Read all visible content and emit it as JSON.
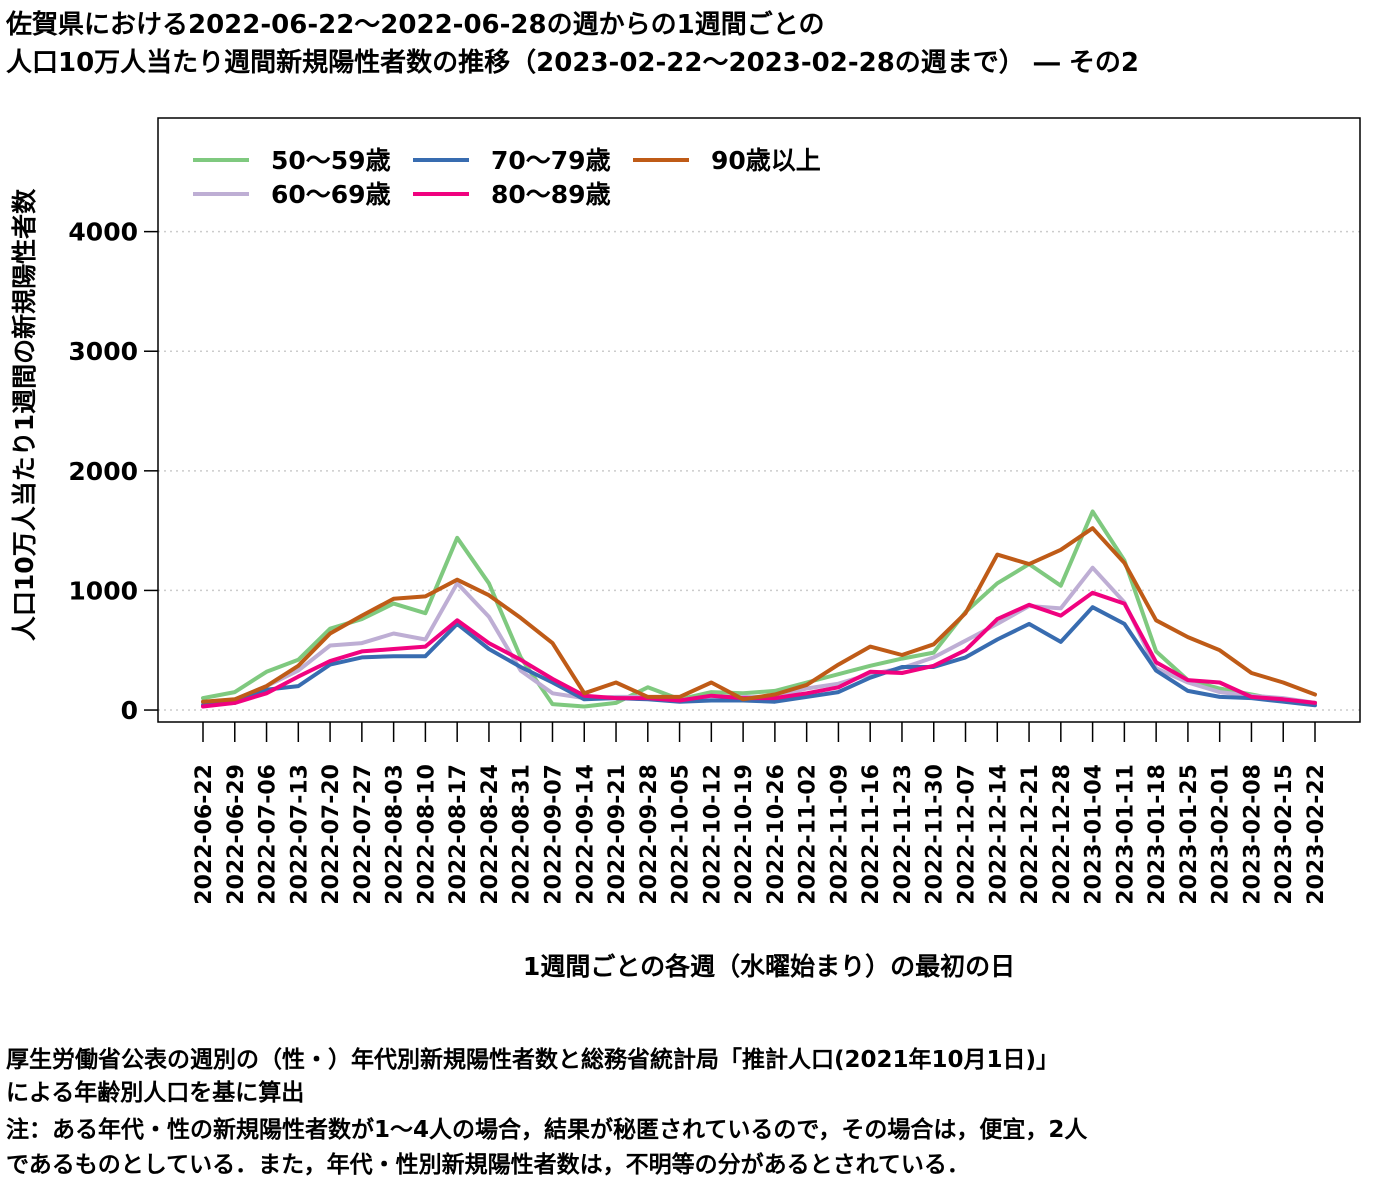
{
  "title": {
    "line1": "佐賀県における2022-06-22〜2022-06-28の週からの1週間ごとの",
    "line2": "人口10万人当たり週間新規陽性者数の推移（2023-02-22〜2023-02-28の週まで） ― その2"
  },
  "notes": {
    "line1": "厚生労働省公表の週別の（性・）年代別新規陽性者数と総務省統計局「推計人口(2021年10月1日)」",
    "line2": "による年齢別人口を基に算出",
    "line3": "注：ある年代・性の新規陽性者数が1〜4人の場合，結果が秘匿されているので，その場合は，便宜，2人",
    "line4": "であるものとしている．また，年代・性別新規陽性者数は，不明等の分があるとされている．"
  },
  "chart_data": {
    "type": "line",
    "xlabel": "1週間ごとの各週（水曜始まり）の最初の日",
    "ylabel": "人口10万人当たり1週間の新規陽性者数",
    "ylim": [
      -100,
      4950
    ],
    "yticks": [
      0,
      1000,
      2000,
      3000,
      4000
    ],
    "grid": "horizontal dotted",
    "legend_position": "top-left",
    "categories": [
      "2022-06-22",
      "2022-06-29",
      "2022-07-06",
      "2022-07-13",
      "2022-07-20",
      "2022-07-27",
      "2022-08-03",
      "2022-08-10",
      "2022-08-17",
      "2022-08-24",
      "2022-08-31",
      "2022-09-07",
      "2022-09-14",
      "2022-09-21",
      "2022-09-28",
      "2022-10-05",
      "2022-10-12",
      "2022-10-19",
      "2022-10-26",
      "2022-11-02",
      "2022-11-09",
      "2022-11-16",
      "2022-11-23",
      "2022-11-30",
      "2022-12-07",
      "2022-12-14",
      "2022-12-21",
      "2022-12-28",
      "2023-01-04",
      "2023-01-11",
      "2023-01-18",
      "2023-01-25",
      "2023-02-01",
      "2023-02-08",
      "2023-02-15",
      "2023-02-22"
    ],
    "series": [
      {
        "name": "50〜59歳",
        "color": "#7fc97f",
        "values": [
          100,
          150,
          320,
          420,
          680,
          760,
          890,
          810,
          1440,
          1060,
          440,
          50,
          30,
          60,
          190,
          90,
          150,
          140,
          160,
          230,
          300,
          370,
          430,
          480,
          820,
          1060,
          1220,
          1040,
          1660,
          1250,
          490,
          250,
          180,
          130,
          80,
          60
        ]
      },
      {
        "name": "60〜69歳",
        "color": "#beaed4",
        "values": [
          60,
          90,
          200,
          330,
          540,
          560,
          640,
          590,
          1060,
          780,
          330,
          140,
          100,
          110,
          110,
          80,
          110,
          110,
          110,
          180,
          220,
          300,
          350,
          440,
          580,
          720,
          870,
          850,
          1190,
          900,
          350,
          230,
          150,
          120,
          100,
          60
        ]
      },
      {
        "name": "70〜79歳",
        "color": "#386cb0",
        "values": [
          40,
          60,
          170,
          200,
          380,
          440,
          450,
          450,
          720,
          510,
          360,
          230,
          90,
          100,
          90,
          70,
          80,
          80,
          70,
          110,
          150,
          270,
          360,
          360,
          440,
          590,
          720,
          570,
          860,
          720,
          330,
          160,
          110,
          100,
          70,
          40
        ]
      },
      {
        "name": "80〜89歳",
        "color": "#f0027f",
        "values": [
          30,
          60,
          140,
          280,
          410,
          490,
          510,
          530,
          750,
          560,
          420,
          260,
          120,
          100,
          100,
          80,
          120,
          100,
          100,
          140,
          190,
          320,
          310,
          370,
          500,
          760,
          880,
          790,
          980,
          890,
          400,
          250,
          230,
          110,
          90,
          60
        ]
      },
      {
        "name": "90歳以上",
        "color": "#bf5b17",
        "values": [
          70,
          90,
          200,
          370,
          640,
          790,
          930,
          950,
          1090,
          960,
          770,
          560,
          140,
          230,
          110,
          110,
          230,
          90,
          130,
          210,
          380,
          530,
          460,
          550,
          810,
          1300,
          1220,
          1340,
          1520,
          1230,
          750,
          610,
          500,
          310,
          230,
          130
        ]
      }
    ]
  }
}
